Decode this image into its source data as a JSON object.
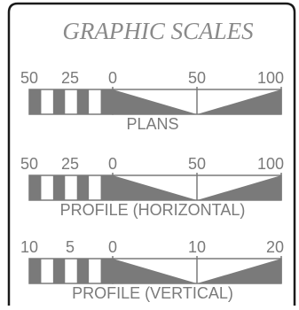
{
  "title": "GRAPHIC SCALES",
  "colors": {
    "frame": "#1a1a1a",
    "ink": "#7a7a7a",
    "fill": "#7a7a7a",
    "title": "#8a8a8a"
  },
  "scales": [
    {
      "label": "PLANS",
      "ticks": [
        "50",
        "25",
        "0",
        "50",
        "100"
      ]
    },
    {
      "label": "PROFILE (HORIZONTAL)",
      "ticks": [
        "50",
        "25",
        "0",
        "50",
        "100"
      ]
    },
    {
      "label": "PROFILE (VERTICAL)",
      "ticks": [
        "10",
        "5",
        "0",
        "10",
        "20"
      ]
    }
  ]
}
